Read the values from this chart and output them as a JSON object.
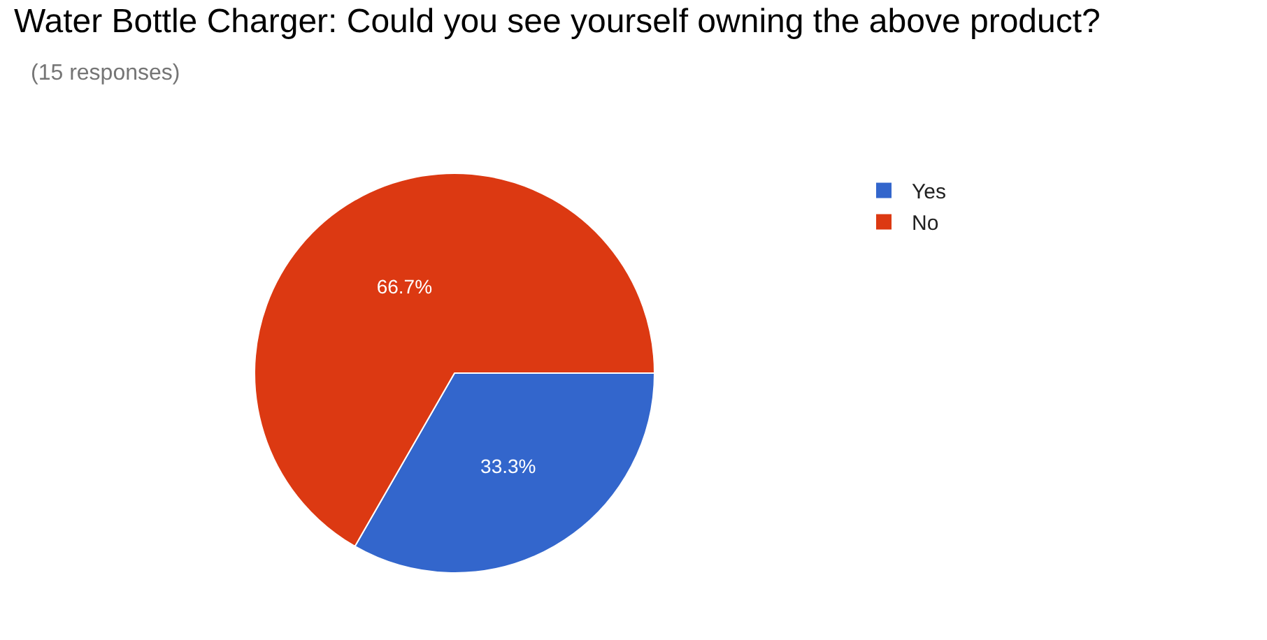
{
  "chart_data": {
    "type": "pie",
    "title": "Water Bottle Charger: Could you see yourself owning the above product?",
    "subtitle": "(15 responses)",
    "categories": [
      "Yes",
      "No"
    ],
    "values": [
      33.3,
      66.7
    ],
    "colors": [
      "#3366cc",
      "#dc3912"
    ],
    "value_labels": [
      "33.3%",
      "66.7%"
    ],
    "legend": "top right"
  }
}
